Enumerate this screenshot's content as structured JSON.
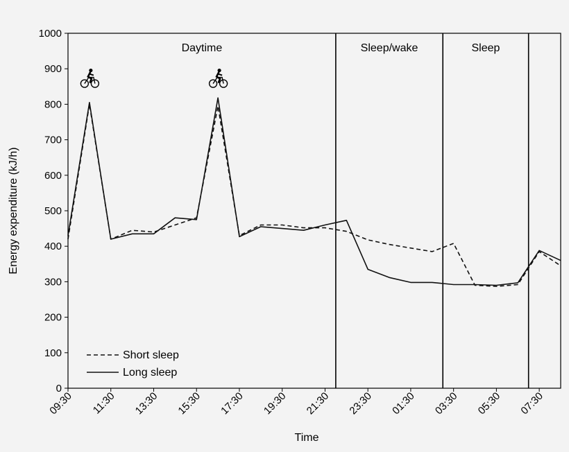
{
  "chart_data": {
    "type": "line",
    "xlabel": "Time",
    "ylabel": "Energy expenditure (kJ/h)",
    "ylim": [
      0,
      1000
    ],
    "yticks": [
      0,
      100,
      200,
      300,
      400,
      500,
      600,
      700,
      800,
      900,
      1000
    ],
    "xlim": [
      "09:30",
      "08:30"
    ],
    "xtick_labels": [
      "09:30",
      "11:30",
      "13:30",
      "15:30",
      "17:30",
      "19:30",
      "21:30",
      "23:30",
      "01:30",
      "03:30",
      "05:30",
      "07:30"
    ],
    "grid": false,
    "legend_position": "bottom-left",
    "phases": [
      {
        "label": "Daytime",
        "start": "09:30",
        "end": "22:00"
      },
      {
        "label": "Sleep/wake",
        "start": "22:00",
        "end": "03:00"
      },
      {
        "label": "Sleep",
        "start": "03:00",
        "end": "07:00"
      }
    ],
    "phase_boundaries": [
      "22:00",
      "03:00",
      "07:00"
    ],
    "annotations": [
      {
        "icon": "cyclist-icon",
        "x": "10:30",
        "y": 870
      },
      {
        "icon": "cyclist-icon",
        "x": "16:30",
        "y": 870
      }
    ],
    "series": [
      {
        "name": "Short sleep",
        "style": "dashed",
        "x": [
          "09:30",
          "10:30",
          "11:30",
          "12:30",
          "13:30",
          "14:30",
          "15:30",
          "16:30",
          "17:30",
          "18:30",
          "19:30",
          "20:30",
          "21:30",
          "22:30",
          "23:30",
          "00:30",
          "01:30",
          "02:30",
          "03:30",
          "04:30",
          "05:30",
          "06:30",
          "07:30",
          "08:30"
        ],
        "values": [
          420,
          800,
          420,
          445,
          440,
          460,
          480,
          795,
          430,
          460,
          460,
          452,
          452,
          442,
          418,
          405,
          395,
          385,
          408,
          290,
          287,
          292,
          385,
          345
        ]
      },
      {
        "name": "Long sleep",
        "style": "solid",
        "x": [
          "09:30",
          "10:30",
          "11:30",
          "12:30",
          "13:30",
          "14:30",
          "15:30",
          "16:30",
          "17:30",
          "18:30",
          "19:30",
          "20:30",
          "21:30",
          "22:30",
          "23:30",
          "00:30",
          "01:30",
          "02:30",
          "03:30",
          "04:30",
          "05:30",
          "06:30",
          "07:30",
          "08:30"
        ],
        "values": [
          430,
          805,
          420,
          435,
          435,
          480,
          475,
          818,
          427,
          455,
          450,
          445,
          460,
          473,
          335,
          312,
          298,
          298,
          292,
          292,
          290,
          297,
          388,
          360
        ]
      }
    ]
  }
}
